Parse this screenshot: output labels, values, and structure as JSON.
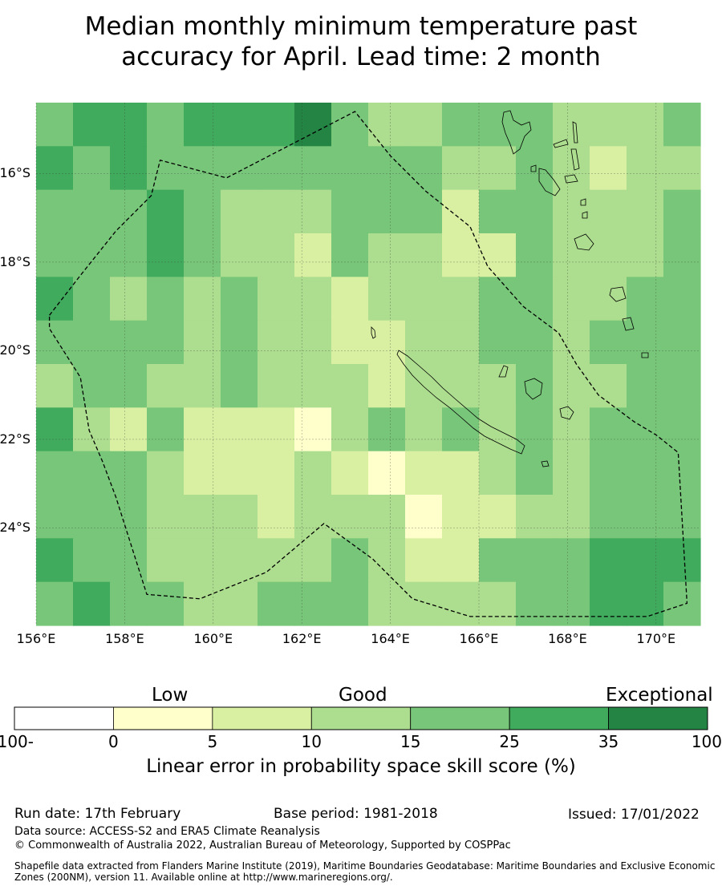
{
  "title": {
    "line1": "Median monthly minimum temperature past",
    "line2": "accuracy for April. Lead time: 2 month"
  },
  "map": {
    "lon_range": [
      156,
      171
    ],
    "lat_range": [
      -26.2,
      -14.4
    ],
    "x_ticks": [
      "156°E",
      "158°E",
      "160°E",
      "162°E",
      "164°E",
      "166°E",
      "168°E",
      "170°E"
    ],
    "x_tick_values": [
      156,
      158,
      160,
      162,
      164,
      166,
      168,
      170
    ],
    "y_ticks": [
      "16°S",
      "18°S",
      "20°S",
      "22°S",
      "24°S"
    ],
    "y_tick_values": [
      -16,
      -18,
      -20,
      -22,
      -24
    ],
    "grid_cols": 18,
    "grid_rows": 12,
    "grid_classes": [
      [
        3,
        4,
        4,
        3,
        4,
        4,
        4,
        5,
        3,
        2,
        2,
        3,
        3,
        3,
        2,
        2,
        2,
        3
      ],
      [
        4,
        3,
        4,
        3,
        3,
        3,
        3,
        3,
        3,
        3,
        3,
        2,
        2,
        3,
        2,
        1,
        2,
        2
      ],
      [
        3,
        3,
        3,
        4,
        3,
        2,
        2,
        2,
        3,
        3,
        3,
        1,
        3,
        3,
        2,
        2,
        2,
        3
      ],
      [
        3,
        3,
        3,
        4,
        3,
        2,
        2,
        1,
        3,
        2,
        2,
        1,
        1,
        3,
        2,
        2,
        2,
        3
      ],
      [
        4,
        3,
        2,
        3,
        2,
        3,
        2,
        2,
        1,
        2,
        2,
        2,
        3,
        3,
        2,
        2,
        3,
        3
      ],
      [
        3,
        3,
        3,
        3,
        2,
        3,
        2,
        2,
        1,
        1,
        2,
        2,
        3,
        3,
        2,
        3,
        3,
        3
      ],
      [
        2,
        3,
        3,
        2,
        2,
        3,
        2,
        2,
        2,
        1,
        2,
        2,
        2,
        3,
        2,
        2,
        3,
        3
      ],
      [
        4,
        2,
        1,
        3,
        1,
        1,
        1,
        0,
        2,
        3,
        2,
        3,
        2,
        3,
        2,
        3,
        3,
        3
      ],
      [
        3,
        3,
        3,
        2,
        1,
        1,
        1,
        2,
        1,
        0,
        1,
        1,
        2,
        3,
        2,
        3,
        3,
        3
      ],
      [
        3,
        3,
        3,
        2,
        2,
        2,
        1,
        2,
        2,
        2,
        0,
        1,
        1,
        2,
        2,
        3,
        3,
        3
      ],
      [
        4,
        3,
        3,
        2,
        2,
        2,
        2,
        2,
        3,
        2,
        1,
        1,
        3,
        3,
        3,
        4,
        4,
        4
      ],
      [
        3,
        4,
        3,
        3,
        2,
        2,
        3,
        3,
        3,
        2,
        2,
        2,
        2,
        3,
        3,
        4,
        4,
        3
      ]
    ],
    "eez_boundary": [
      [
        156.3,
        -19.2
      ],
      [
        157,
        -18.3
      ],
      [
        157.8,
        -17.3
      ],
      [
        158.6,
        -16.5
      ],
      [
        158.8,
        -15.7
      ],
      [
        160.3,
        -16.1
      ],
      [
        163.2,
        -14.6
      ],
      [
        164,
        -15.6
      ],
      [
        164.8,
        -16.4
      ],
      [
        165.8,
        -17.2
      ],
      [
        166.2,
        -18.1
      ],
      [
        167,
        -19
      ],
      [
        167.8,
        -19.6
      ],
      [
        168.2,
        -20.3
      ],
      [
        168.7,
        -21
      ],
      [
        169.5,
        -21.6
      ],
      [
        170,
        -21.9
      ],
      [
        170.5,
        -22.3
      ],
      [
        170.7,
        -25.7
      ],
      [
        169.8,
        -26.0
      ],
      [
        165.8,
        -26.0
      ],
      [
        164.5,
        -25.6
      ],
      [
        163.6,
        -24.7
      ],
      [
        162.5,
        -23.9
      ],
      [
        161.2,
        -25
      ],
      [
        159.7,
        -25.6
      ],
      [
        158.5,
        -25.5
      ],
      [
        157.8,
        -23.3
      ],
      [
        157.5,
        -22.5
      ],
      [
        157.2,
        -21.8
      ],
      [
        157.0,
        -20.6
      ],
      [
        156.3,
        -19.5
      ]
    ]
  },
  "colorbar": {
    "category_labels": [
      "Low",
      "Good",
      "Exceptional"
    ],
    "ticks": [
      "-100",
      "0",
      "5",
      "10",
      "15",
      "25",
      "35",
      "100"
    ],
    "colors": [
      "#ffffff",
      "#ffffcc",
      "#d9f0a3",
      "#addd8e",
      "#78c679",
      "#41ab5d",
      "#238443"
    ],
    "title": "Linear error in probability space skill score (%)"
  },
  "footer": {
    "run_date": "Run date: 17th February",
    "base_period": "Base period: 1981-2018",
    "issued": "Issued: 17/01/2022",
    "data_source": "Data source: ACCESS-S2 and ERA5 Climate Reanalysis",
    "copyright": "© Commonwealth of Australia 2022, Australian Bureau of Meteorology, Supported by COSPPac",
    "shapefile": "Shapefile data extracted from Flanders Marine Institute (2019), Maritime Boundaries Geodatabase: Maritime Boundaries and Exclusive Economic Zones (200NM), version 11. Available online at http://www.marineregions.org/."
  }
}
